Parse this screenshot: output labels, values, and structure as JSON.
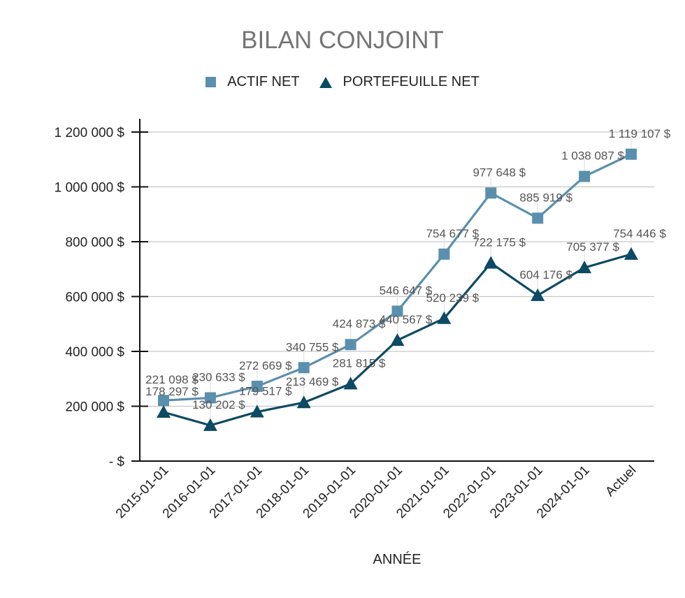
{
  "chart_data": {
    "type": "line",
    "title": "BILAN CONJOINT",
    "xlabel": "ANNÉE",
    "ylabel": "",
    "categories": [
      "2015-01-01",
      "2016-01-01",
      "2017-01-01",
      "2018-01-01",
      "2019-01-01",
      "2020-01-01",
      "2021-01-01",
      "2022-01-01",
      "2023-01-01",
      "2024-01-01",
      "Actuel"
    ],
    "series": [
      {
        "name": "ACTIF NET",
        "marker": "square",
        "color": "#5a90ad",
        "values": [
          221098,
          230633,
          272669,
          340755,
          424873,
          546647,
          754677,
          977648,
          885919,
          1038087,
          1119107
        ],
        "labels": [
          "221 098 $",
          "230 633 $",
          "272 669 $",
          "340 755 $",
          "424 873 $",
          "546 647 $",
          "754 677 $",
          "977 648 $",
          "885 919 $",
          "1 038 087 $",
          "1 119 107 $"
        ]
      },
      {
        "name": "PORTEFEUILLE NET",
        "marker": "triangle",
        "color": "#0d4a64",
        "values": [
          178297,
          130202,
          179517,
          213469,
          281815,
          440567,
          520239,
          722175,
          604176,
          705377,
          754446
        ],
        "labels": [
          "178 297 $",
          "130 202 $",
          "179 517 $",
          "213 469 $",
          "281 815 $",
          "440 567 $",
          "520 239 $",
          "722 175 $",
          "604 176 $",
          "705 377 $",
          "754 446 $"
        ]
      }
    ],
    "y_ticks": [
      0,
      200000,
      400000,
      600000,
      800000,
      1000000,
      1200000
    ],
    "y_tick_labels": [
      "-   $",
      "200 000 $",
      "400 000 $",
      "600 000 $",
      "800 000 $",
      "1 000 000 $",
      "1 200 000 $"
    ],
    "ylim": [
      0,
      1200000
    ],
    "grid": true,
    "legend_position": "top"
  },
  "legend": {
    "items": [
      {
        "label": "ACTIF NET"
      },
      {
        "label": "PORTEFEUILLE NET"
      }
    ]
  }
}
